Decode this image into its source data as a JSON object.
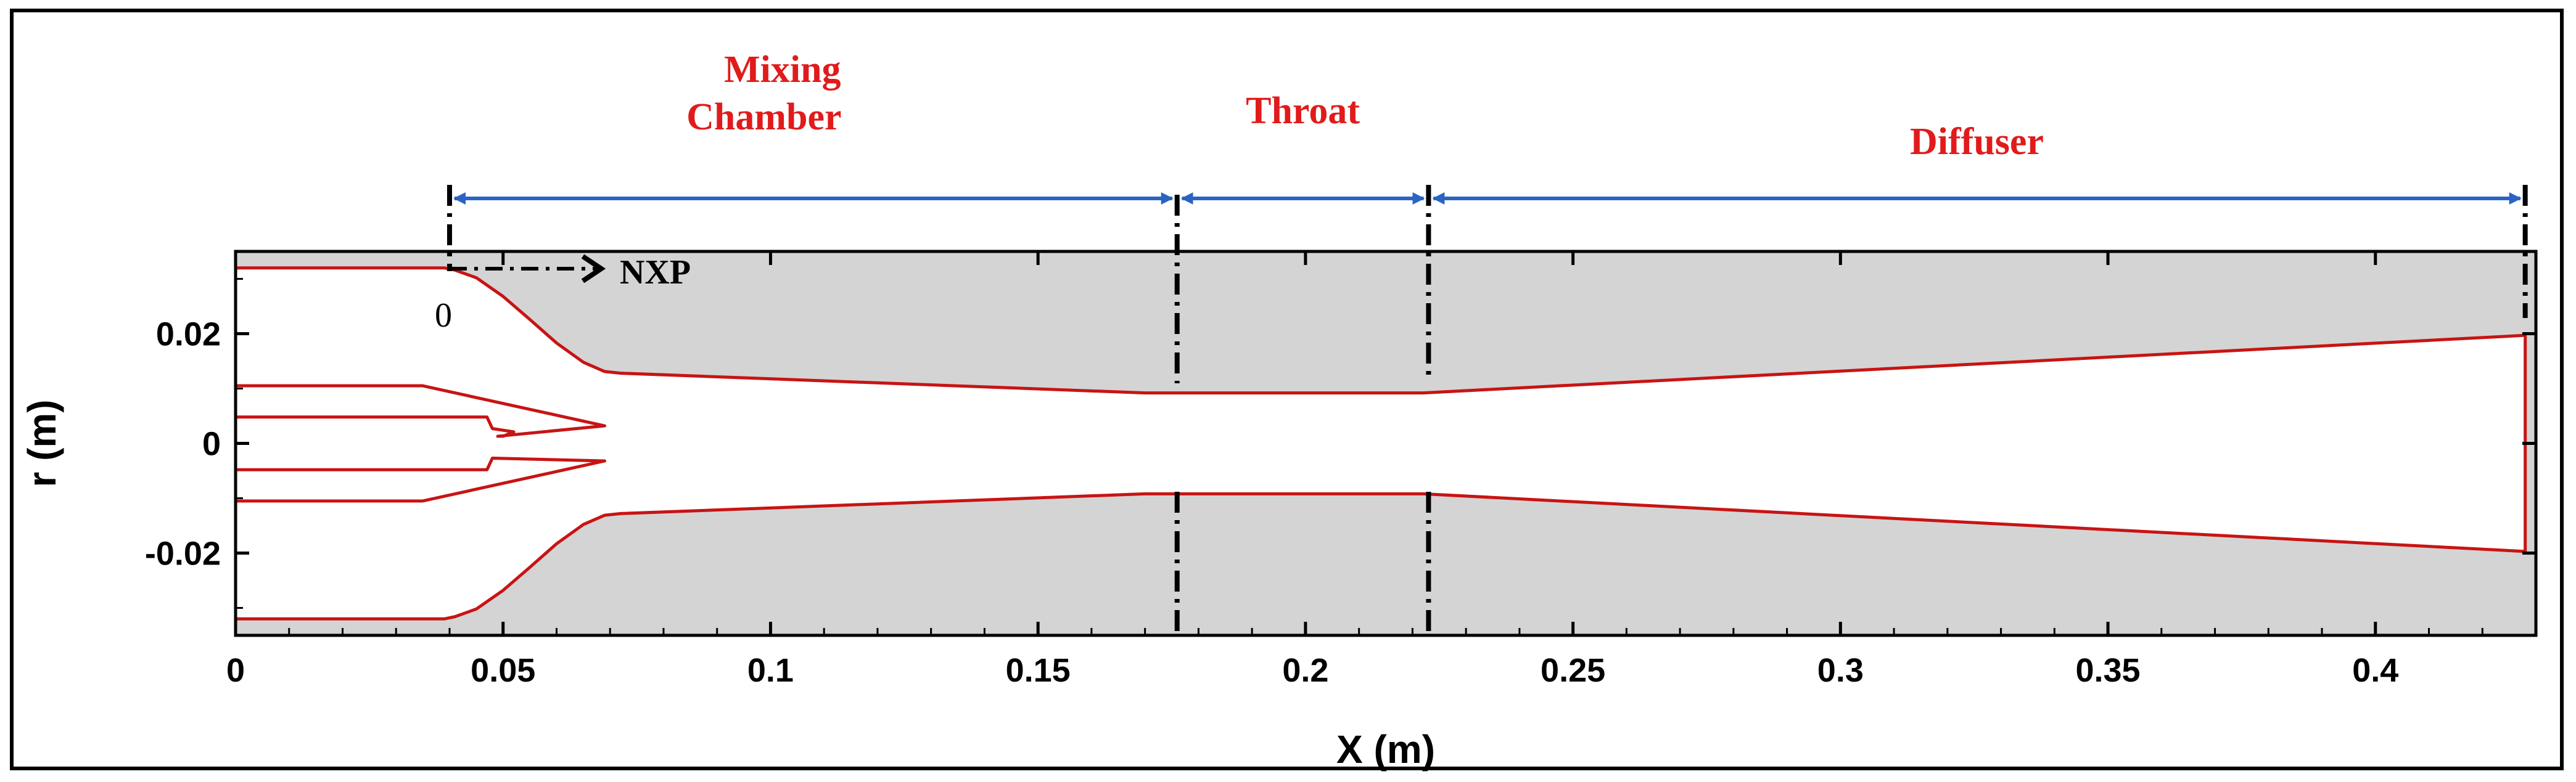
{
  "chart_data": {
    "type": "line",
    "title": "",
    "xlabel": "X (m)",
    "ylabel": "r (m)",
    "xlim": [
      0,
      0.43
    ],
    "ylim": [
      -0.035,
      0.035
    ],
    "x_ticks": [
      0,
      0.05,
      0.1,
      0.15,
      0.2,
      0.25,
      0.3,
      0.35,
      0.4
    ],
    "x_tick_labels": [
      "0",
      "0.05",
      "0.1",
      "0.15",
      "0.2",
      "0.25",
      "0.3",
      "0.35",
      "0.4"
    ],
    "y_ticks": [
      0.02,
      0,
      -0.02
    ],
    "y_tick_labels": [
      "0.02",
      "0",
      "-0.02"
    ],
    "grid": false,
    "background_color": "#d4d4d4",
    "line_color": "#c81414",
    "series": [
      {
        "name": "Ejector wall (upper)",
        "x": [
          0,
          0.039,
          0.041,
          0.045,
          0.05,
          0.055,
          0.06,
          0.065,
          0.069,
          0.072,
          0.17,
          0.222,
          0.428,
          0.428
        ],
        "y": [
          0.032,
          0.032,
          0.0316,
          0.0302,
          0.0268,
          0.0226,
          0.0183,
          0.0148,
          0.0131,
          0.0128,
          0.0092,
          0.0092,
          0.0197,
          -0.0197
        ]
      },
      {
        "name": "Ejector wall (lower)",
        "x": [
          0,
          0.039,
          0.041,
          0.045,
          0.05,
          0.055,
          0.06,
          0.065,
          0.069,
          0.072,
          0.17,
          0.222,
          0.428
        ],
        "y": [
          -0.032,
          -0.032,
          -0.0316,
          -0.0302,
          -0.0268,
          -0.0226,
          -0.0183,
          -0.0148,
          -0.0131,
          -0.0128,
          -0.0092,
          -0.0092,
          -0.0197
        ]
      },
      {
        "name": "Primary nozzle",
        "x": [
          0,
          0.035,
          0.069,
          0.049,
          0.05,
          0.052,
          0.048,
          0.047,
          0,
          null,
          0,
          0.047,
          0.048,
          0.069,
          0.035,
          0
        ],
        "y": [
          0.0105,
          0.0105,
          0.0032,
          0.0013,
          0.0013,
          0.0021,
          0.0027,
          0.0048,
          0.0048,
          null,
          -0.0048,
          -0.0048,
          -0.0027,
          -0.0032,
          -0.0105,
          -0.0105
        ]
      }
    ],
    "regions": [
      {
        "label_lines": [
          "Mixing",
          "Chamber"
        ],
        "x_start": 0.04,
        "x_end": 0.176
      },
      {
        "label_lines": [
          "Throat"
        ],
        "x_start": 0.176,
        "x_end": 0.223
      },
      {
        "label_lines": [
          "Diffuser"
        ],
        "x_start": 0.223,
        "x_end": 0.428
      }
    ],
    "dashed_markers_x": [
      0.04,
      0.176,
      0.223,
      0.428
    ],
    "annotations": [
      {
        "text": "NXP",
        "x": 0.04,
        "arrow": "right"
      },
      {
        "text": "0",
        "x": 0.04
      }
    ],
    "annotation_arrow_color": "#2a64c2",
    "region_label_color": "#e11b1b"
  }
}
